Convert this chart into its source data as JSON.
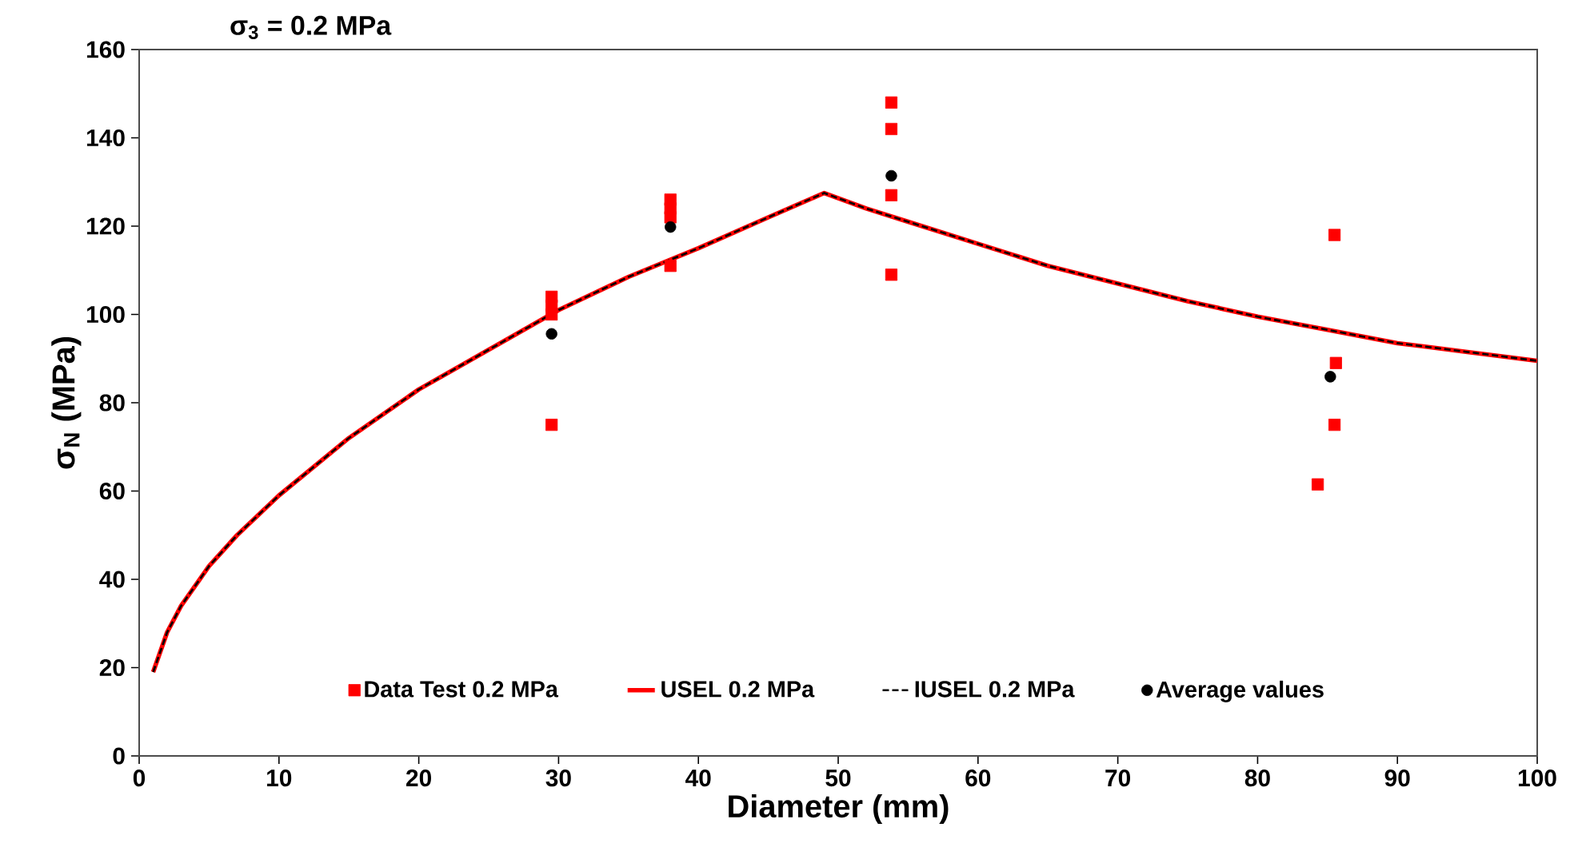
{
  "chart_data": {
    "type": "scatter",
    "title": "σ$_{3}$ = 0.2 MPa",
    "xlabel": "Diameter (mm)",
    "ylabel": "σ$_{N}$ (MPa)",
    "xlim": [
      0,
      100
    ],
    "ylim": [
      0,
      160
    ],
    "xticks": [
      0,
      10,
      20,
      30,
      40,
      50,
      60,
      70,
      80,
      90,
      100
    ],
    "yticks": [
      0,
      20,
      40,
      60,
      80,
      100,
      120,
      140,
      160
    ],
    "grid": false,
    "legend": "bottom",
    "series": [
      {
        "name": "Data Test 0.2 MPa",
        "marker": "square",
        "color": "#ff0000",
        "x": [
          29.5,
          29.5,
          29.5,
          29.5,
          38,
          38,
          38,
          38,
          53.8,
          53.8,
          53.8,
          53.8,
          85.5,
          85.6,
          85.5,
          84.3
        ],
        "values": [
          104,
          102,
          100,
          75,
          126,
          124,
          122,
          111,
          148,
          142,
          127,
          109,
          118,
          89,
          75,
          61.5
        ]
      },
      {
        "name": "USEL 0.2 MPa",
        "type": "line",
        "marker": "none",
        "line_style": "solid",
        "color": "#ff0000",
        "x": [
          1,
          2,
          3,
          5,
          7,
          10,
          15,
          20,
          25,
          30,
          35,
          40,
          45,
          49,
          52,
          55,
          60,
          65,
          70,
          75,
          80,
          85,
          90,
          95,
          100
        ],
        "values": [
          19,
          28,
          34,
          43,
          50,
          59,
          72,
          83,
          92,
          101,
          108.5,
          115,
          122,
          127.5,
          124,
          121,
          116,
          111,
          107,
          103,
          99.5,
          96.5,
          93.5,
          91.5,
          89.5
        ]
      },
      {
        "name": "IUSEL 0.2 MPa",
        "type": "line",
        "marker": "none",
        "line_style": "dashed",
        "color": "#000000",
        "x": [
          1,
          2,
          3,
          5,
          7,
          10,
          15,
          20,
          25,
          30,
          35,
          40,
          45,
          49,
          52,
          55,
          60,
          65,
          70,
          75,
          80,
          85,
          90,
          95,
          100
        ],
        "values": [
          19,
          28,
          34,
          43,
          50,
          59,
          72,
          83,
          92,
          101,
          108.5,
          115,
          122,
          127.5,
          124,
          121,
          116,
          111,
          107,
          103,
          99.5,
          96.5,
          93.5,
          91.5,
          89.5
        ]
      },
      {
        "name": "Average values",
        "marker": "circle",
        "color": "#000000",
        "x": [
          29.5,
          38,
          53.8,
          85.2
        ],
        "values": [
          95.6,
          119.8,
          131.4,
          85.9
        ]
      }
    ]
  }
}
